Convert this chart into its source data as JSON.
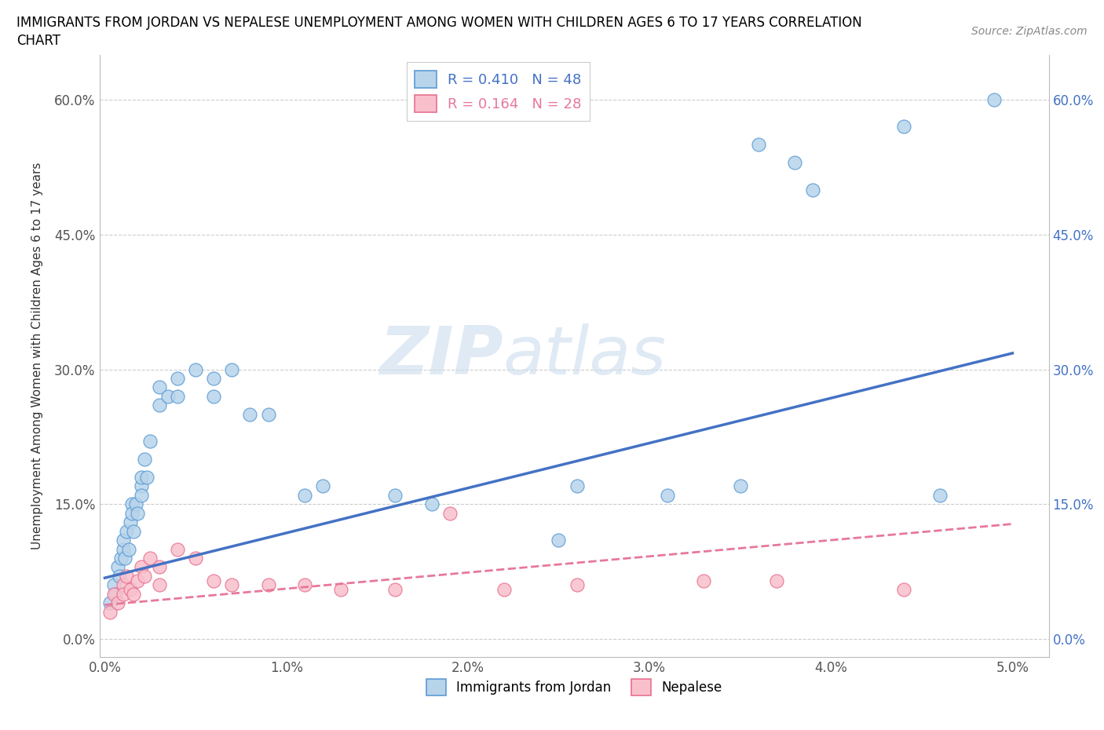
{
  "title_line1": "IMMIGRANTS FROM JORDAN VS NEPALESE UNEMPLOYMENT AMONG WOMEN WITH CHILDREN AGES 6 TO 17 YEARS CORRELATION",
  "title_line2": "CHART",
  "source": "Source: ZipAtlas.com",
  "ylabel": "Unemployment Among Women with Children Ages 6 to 17 years",
  "xlim": [
    -0.0003,
    0.052
  ],
  "ylim": [
    -0.02,
    0.65
  ],
  "xticks": [
    0.0,
    0.01,
    0.02,
    0.03,
    0.04,
    0.05
  ],
  "xticklabels": [
    "0.0%",
    "1.0%",
    "2.0%",
    "3.0%",
    "4.0%",
    "5.0%"
  ],
  "yticks": [
    0.0,
    0.15,
    0.3,
    0.45,
    0.6
  ],
  "yticklabels_left": [
    "0.0%",
    "15.0%",
    "30.0%",
    "45.0%",
    "60.0%"
  ],
  "yticklabels_right": [
    "0.0%",
    "15.0%",
    "30.0%",
    "45.0%",
    "60.0%"
  ],
  "color_jordan_fill": "#b8d4ea",
  "color_jordan_edge": "#5b9bd5",
  "color_nepalese_fill": "#f9c0cc",
  "color_nepalese_edge": "#e87090",
  "color_line_jordan": "#4472c4",
  "color_line_nepalese": "#e8789a",
  "color_right_axis": "#4472c4",
  "jordan_x": [
    0.0003,
    0.0005,
    0.0006,
    0.0007,
    0.0008,
    0.0009,
    0.001,
    0.001,
    0.0011,
    0.0012,
    0.0013,
    0.0014,
    0.0015,
    0.0015,
    0.0016,
    0.0017,
    0.0018,
    0.002,
    0.002,
    0.002,
    0.0022,
    0.0023,
    0.0025,
    0.003,
    0.003,
    0.0035,
    0.004,
    0.004,
    0.005,
    0.006,
    0.006,
    0.007,
    0.008,
    0.009,
    0.011,
    0.012,
    0.016,
    0.018,
    0.025,
    0.026,
    0.031,
    0.035,
    0.036,
    0.038,
    0.039,
    0.044,
    0.046,
    0.049
  ],
  "jordan_y": [
    0.04,
    0.06,
    0.05,
    0.08,
    0.07,
    0.09,
    0.1,
    0.11,
    0.09,
    0.12,
    0.1,
    0.13,
    0.15,
    0.14,
    0.12,
    0.15,
    0.14,
    0.17,
    0.16,
    0.18,
    0.2,
    0.18,
    0.22,
    0.28,
    0.26,
    0.27,
    0.29,
    0.27,
    0.3,
    0.29,
    0.27,
    0.3,
    0.25,
    0.25,
    0.16,
    0.17,
    0.16,
    0.15,
    0.11,
    0.17,
    0.16,
    0.17,
    0.55,
    0.53,
    0.5,
    0.57,
    0.16,
    0.6
  ],
  "nepalese_x": [
    0.0003,
    0.0005,
    0.0007,
    0.001,
    0.001,
    0.0012,
    0.0014,
    0.0016,
    0.0018,
    0.002,
    0.0022,
    0.0025,
    0.003,
    0.003,
    0.004,
    0.005,
    0.006,
    0.007,
    0.009,
    0.011,
    0.013,
    0.016,
    0.019,
    0.022,
    0.026,
    0.033,
    0.037,
    0.044
  ],
  "nepalese_y": [
    0.03,
    0.05,
    0.04,
    0.06,
    0.05,
    0.07,
    0.055,
    0.05,
    0.065,
    0.08,
    0.07,
    0.09,
    0.08,
    0.06,
    0.1,
    0.09,
    0.065,
    0.06,
    0.06,
    0.06,
    0.055,
    0.055,
    0.14,
    0.055,
    0.06,
    0.065,
    0.065,
    0.055
  ]
}
